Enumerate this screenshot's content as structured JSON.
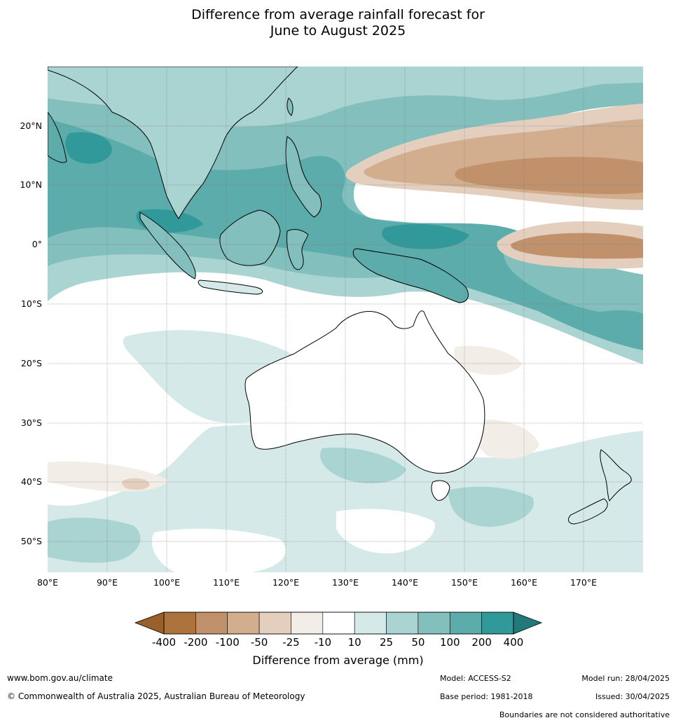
{
  "title": {
    "line1": "Difference from average rainfall forecast for",
    "line2": "June to August 2025"
  },
  "axes": {
    "lat_labels": [
      "20°N",
      "10°N",
      "0°",
      "10°S",
      "20°S",
      "30°S",
      "40°S",
      "50°S"
    ],
    "lon_labels": [
      "80°E",
      "90°E",
      "100°E",
      "110°E",
      "120°E",
      "130°E",
      "140°E",
      "150°E",
      "160°E",
      "170°E"
    ]
  },
  "legend": {
    "title": "Difference from average (mm)",
    "ticks": [
      "-400",
      "-200",
      "-100",
      "-50",
      "-25",
      "-10",
      "10",
      "25",
      "50",
      "100",
      "200",
      "400"
    ],
    "colors": {
      "extend_low": "#9a5f2a",
      "bins": [
        "#ad733c",
        "#c0916b",
        "#d2ae8f",
        "#e4cfbf",
        "#f2ede6",
        "#ffffff",
        "#d5eae8",
        "#a9d4d2",
        "#82bfbd",
        "#5bacaa",
        "#32999a"
      ],
      "extend_high": "#23787a"
    }
  },
  "footer": {
    "website": "www.bom.gov.au/climate",
    "copyright": "© Commonwealth of Australia 2025, Australian Bureau of Meteorology",
    "model": "Model: ACCESS-S2",
    "base_period": "Base period: 1981-2018",
    "model_run": "Model run: 28/04/2025",
    "issued": "Issued: 30/04/2025",
    "disclaimer": "Boundaries are not considered authoritative"
  }
}
